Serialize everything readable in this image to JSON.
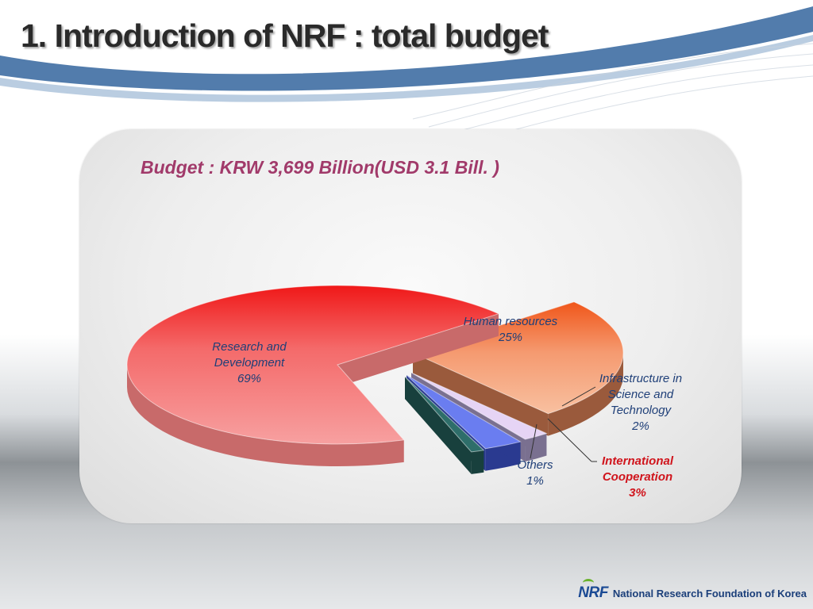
{
  "slide": {
    "title": "1. Introduction of NRF : total budget"
  },
  "footer": {
    "logo_text": "NRF",
    "org_name": "National Research Foundation of Korea"
  },
  "chart_data": {
    "type": "pie",
    "title": "Budget : KRW 3,699 Billion(USD 3.1 Bill. )",
    "three_d": true,
    "exploded": true,
    "slices": [
      {
        "label": "Research and Development",
        "value": 69,
        "value_label": "69%",
        "color": "#f28e8e",
        "side_color": "#c86a6a"
      },
      {
        "label": "Human resources",
        "value": 25,
        "value_label": "25%",
        "color": "#f6a779",
        "side_color": "#9a5a3c"
      },
      {
        "label": "Infrastructure in Science and Technology",
        "value": 2,
        "value_label": "2%",
        "color": "#e6d4f5",
        "side_color": "#7a7090"
      },
      {
        "label": "International Cooperation",
        "value": 3,
        "value_label": "3%",
        "color": "#6a7df0",
        "side_color": "#2a3a90",
        "highlight": true
      },
      {
        "label": "Others",
        "value": 1,
        "value_label": "1%",
        "color": "#2e6e6a",
        "side_color": "#18403d"
      }
    ]
  }
}
